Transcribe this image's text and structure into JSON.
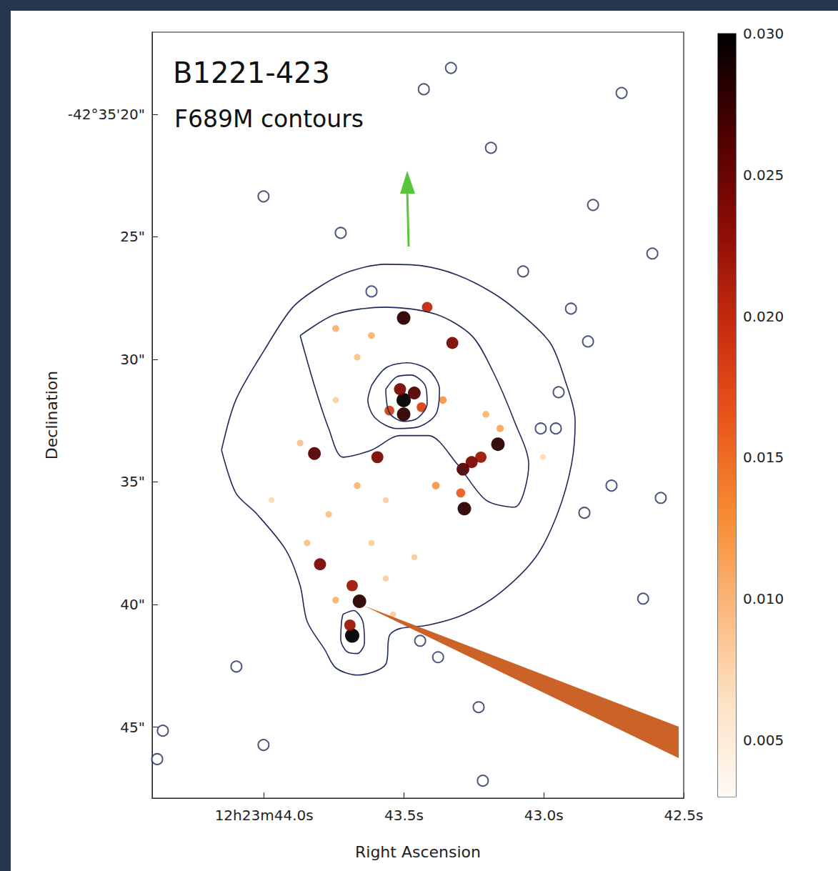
{
  "chart_data": {
    "type": "scatter",
    "title": "B1221-423",
    "subtitle": "F689M contours",
    "x_label": "Right Ascension",
    "y_label": "Declination",
    "xlim": [
      44.4,
      42.5
    ],
    "xticks": [
      {
        "value": 44.0,
        "label": "12h23m44.0s"
      },
      {
        "value": 43.5,
        "label": "43.5s"
      },
      {
        "value": 43.0,
        "label": "43.0s"
      },
      {
        "value": 42.5,
        "label": "42.5s"
      }
    ],
    "ylim": [
      47.9,
      16.65
    ],
    "yticks": [
      {
        "value": 20,
        "label": "-42°35'20\""
      },
      {
        "value": 25,
        "label": "25\""
      },
      {
        "value": 30,
        "label": "30\""
      },
      {
        "value": 35,
        "label": "35\""
      },
      {
        "value": 40,
        "label": "40\""
      },
      {
        "value": 45,
        "label": "45\""
      }
    ],
    "grid": false,
    "series": [
      {
        "type": "scatter",
        "marker": "circle",
        "values": [
          [
            43.501,
            31.66,
            0.03
          ],
          [
            43.514,
            31.22,
            0.024
          ],
          [
            43.463,
            31.37,
            0.026
          ],
          [
            43.501,
            32.24,
            0.028
          ],
          [
            43.552,
            32.09,
            0.018
          ],
          [
            43.437,
            31.95,
            0.018
          ],
          [
            43.501,
            28.31,
            0.028
          ],
          [
            43.417,
            27.87,
            0.02
          ],
          [
            43.327,
            29.33,
            0.024
          ],
          [
            43.164,
            33.46,
            0.028
          ],
          [
            43.225,
            33.99,
            0.022
          ],
          [
            43.258,
            34.19,
            0.024
          ],
          [
            43.289,
            34.48,
            0.026
          ],
          [
            43.297,
            35.45,
            0.016
          ],
          [
            43.284,
            36.09,
            0.028
          ],
          [
            43.82,
            33.84,
            0.026
          ],
          [
            43.595,
            33.99,
            0.024
          ],
          [
            43.8,
            38.36,
            0.024
          ],
          [
            43.685,
            39.23,
            0.022
          ],
          [
            43.659,
            39.87,
            0.028
          ],
          [
            43.685,
            41.27,
            0.03
          ],
          [
            43.693,
            40.84,
            0.022
          ],
          [
            43.744,
            28.74,
            0.01
          ],
          [
            43.667,
            29.91,
            0.009
          ],
          [
            43.616,
            29.03,
            0.01
          ],
          [
            43.361,
            31.66,
            0.012
          ],
          [
            43.207,
            32.24,
            0.01
          ],
          [
            43.386,
            35.15,
            0.012
          ],
          [
            43.156,
            32.82,
            0.011
          ],
          [
            43.744,
            31.66,
            0.008
          ],
          [
            43.667,
            35.15,
            0.01
          ],
          [
            43.565,
            35.74,
            0.008
          ],
          [
            43.769,
            36.32,
            0.009
          ],
          [
            43.616,
            37.49,
            0.008
          ],
          [
            43.463,
            38.07,
            0.008
          ],
          [
            43.846,
            37.49,
            0.009
          ],
          [
            43.565,
            38.94,
            0.008
          ],
          [
            43.744,
            39.82,
            0.01
          ],
          [
            43.539,
            40.4,
            0.008
          ],
          [
            43.973,
            35.74,
            0.007
          ],
          [
            43.003,
            33.99,
            0.007
          ],
          [
            43.871,
            33.41,
            0.009
          ]
        ]
      },
      {
        "type": "line",
        "color": "#1f2a5a",
        "line_style": "solid",
        "contours": [
          [
            [
              44.152,
              33.7
            ],
            [
              44.101,
              31.66
            ],
            [
              43.999,
              29.62
            ],
            [
              43.897,
              27.87
            ],
            [
              43.795,
              26.99
            ],
            [
              43.693,
              26.41
            ],
            [
              43.565,
              26.12
            ],
            [
              43.437,
              26.18
            ],
            [
              43.309,
              26.56
            ],
            [
              43.182,
              27.29
            ],
            [
              43.08,
              28.16
            ],
            [
              42.977,
              29.33
            ],
            [
              42.926,
              30.78
            ],
            [
              42.888,
              32.53
            ],
            [
              42.901,
              34.28
            ],
            [
              42.952,
              36.32
            ],
            [
              43.029,
              38.07
            ],
            [
              43.156,
              39.52
            ],
            [
              43.284,
              40.4
            ],
            [
              43.412,
              40.84
            ],
            [
              43.514,
              40.98
            ],
            [
              43.552,
              41.27
            ],
            [
              43.565,
              42.44
            ],
            [
              43.667,
              42.88
            ],
            [
              43.744,
              42.58
            ],
            [
              43.782,
              41.86
            ],
            [
              43.846,
              40.69
            ],
            [
              43.871,
              39.23
            ],
            [
              43.922,
              37.78
            ],
            [
              44.025,
              36.32
            ],
            [
              44.101,
              35.45
            ],
            [
              44.152,
              33.7
            ]
          ],
          [
            [
              43.871,
              29.03
            ],
            [
              43.744,
              28.16
            ],
            [
              43.565,
              27.87
            ],
            [
              43.386,
              28.16
            ],
            [
              43.258,
              29.03
            ],
            [
              43.182,
              30.49
            ],
            [
              43.105,
              32.53
            ],
            [
              43.054,
              34.28
            ],
            [
              43.105,
              36.03
            ],
            [
              43.207,
              35.74
            ],
            [
              43.309,
              34.28
            ],
            [
              43.412,
              33.11
            ],
            [
              43.514,
              33.11
            ],
            [
              43.616,
              33.7
            ],
            [
              43.718,
              33.99
            ],
            [
              43.769,
              32.82
            ],
            [
              43.82,
              31.07
            ],
            [
              43.871,
              29.03
            ]
          ],
          [
            [
              43.616,
              31.07
            ],
            [
              43.565,
              30.35
            ],
            [
              43.488,
              30.14
            ],
            [
              43.412,
              30.43
            ],
            [
              43.373,
              31.22
            ],
            [
              43.386,
              32.24
            ],
            [
              43.45,
              32.76
            ],
            [
              43.527,
              32.82
            ],
            [
              43.603,
              32.39
            ],
            [
              43.629,
              31.66
            ],
            [
              43.616,
              31.07
            ]
          ],
          [
            [
              43.565,
              31.22
            ],
            [
              43.527,
              30.72
            ],
            [
              43.475,
              30.64
            ],
            [
              43.424,
              31.07
            ],
            [
              43.417,
              31.8
            ],
            [
              43.45,
              32.39
            ],
            [
              43.501,
              32.53
            ],
            [
              43.552,
              32.18
            ],
            [
              43.565,
              31.22
            ]
          ],
          [
            [
              43.718,
              40.4
            ],
            [
              43.68,
              40.25
            ],
            [
              43.647,
              40.69
            ],
            [
              43.641,
              41.56
            ],
            [
              43.667,
              42.0
            ],
            [
              43.705,
              41.91
            ],
            [
              43.726,
              41.42
            ],
            [
              43.723,
              40.69
            ],
            [
              43.718,
              40.4
            ]
          ]
        ]
      },
      {
        "type": "scatter",
        "marker": "ring",
        "color": "#1f2a5a",
        "values": [
          [
            42.722,
            19.13
          ],
          [
            43.189,
            21.37
          ],
          [
            43.429,
            18.98
          ],
          [
            43.332,
            18.11
          ],
          [
            44.002,
            23.35
          ],
          [
            43.726,
            24.84
          ],
          [
            43.616,
            27.23
          ],
          [
            42.824,
            23.7
          ],
          [
            43.074,
            26.41
          ],
          [
            42.903,
            27.93
          ],
          [
            42.842,
            29.27
          ],
          [
            42.947,
            31.34
          ],
          [
            43.011,
            32.82
          ],
          [
            42.957,
            32.82
          ],
          [
            42.855,
            36.26
          ],
          [
            42.758,
            35.15
          ],
          [
            42.612,
            25.68
          ],
          [
            42.582,
            35.65
          ],
          [
            42.645,
            39.76
          ],
          [
            43.378,
            42.15
          ],
          [
            43.442,
            41.48
          ],
          [
            44.099,
            42.53
          ],
          [
            44.362,
            45.15
          ],
          [
            44.002,
            45.73
          ],
          [
            44.382,
            46.31
          ],
          [
            43.233,
            44.19
          ],
          [
            43.218,
            47.19
          ]
        ]
      }
    ],
    "colorbar": {
      "range": [
        0.003,
        0.03
      ],
      "ticks": [
        0.005,
        {
          "value": 0.01,
          "label": "0.010"
        },
        0.015,
        {
          "value": 0.02,
          "label": "0.020"
        },
        0.025,
        {
          "value": 0.03,
          "label": "0.030"
        }
      ]
    }
  }
}
